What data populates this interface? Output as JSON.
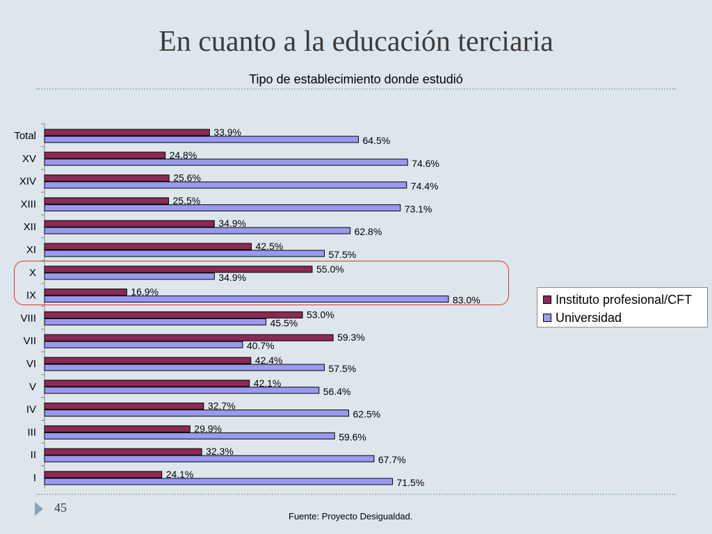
{
  "slide": {
    "title": "En cuanto a la educación terciaria",
    "number": "45",
    "source": "Fuente: Proyecto Desigualdad."
  },
  "chart_data": {
    "type": "bar",
    "orientation": "horizontal",
    "title": "Tipo de establecimiento donde estudió",
    "categories": [
      "Total",
      "XV",
      "XIV",
      "XIII",
      "XII",
      "XI",
      "X",
      "IX",
      "VIII",
      "VII",
      "VI",
      "V",
      "IV",
      "III",
      "II",
      "I"
    ],
    "series": [
      {
        "name": "Instituto profesional/CFT",
        "color": "#8b2a55",
        "values": [
          33.9,
          24.8,
          25.6,
          25.5,
          34.9,
          42.5,
          55.0,
          16.9,
          53.0,
          59.3,
          42.4,
          42.1,
          32.7,
          29.9,
          32.3,
          24.1
        ],
        "labels": [
          "33.9%",
          "24.8%",
          "25.6%",
          "25.5%",
          "34.9%",
          "42.5%",
          "55.0%",
          "16.9%",
          "53.0%",
          "59.3%",
          "42.4%",
          "42.1%",
          "32.7%",
          "29.9%",
          "32.3%",
          "24.1%"
        ]
      },
      {
        "name": "Universidad",
        "color": "#9999f0",
        "values": [
          64.5,
          74.6,
          74.4,
          73.1,
          62.8,
          57.5,
          34.9,
          83.0,
          45.5,
          40.7,
          57.5,
          56.4,
          62.5,
          59.6,
          67.7,
          71.5
        ],
        "labels": [
          "64.5%",
          "74.6%",
          "74.4%",
          "73.1%",
          "62.8%",
          "57.5%",
          "34.9%",
          "83.0%",
          "45.5%",
          "40.7%",
          "57.5%",
          "56.4%",
          "62.5%",
          "59.6%",
          "67.7%",
          "71.5%"
        ]
      }
    ],
    "xlim": [
      0,
      100
    ],
    "grid": false,
    "legend_position": "right",
    "highlighted_categories": [
      "X",
      "IX"
    ],
    "highlight_color": "#d9342b"
  }
}
